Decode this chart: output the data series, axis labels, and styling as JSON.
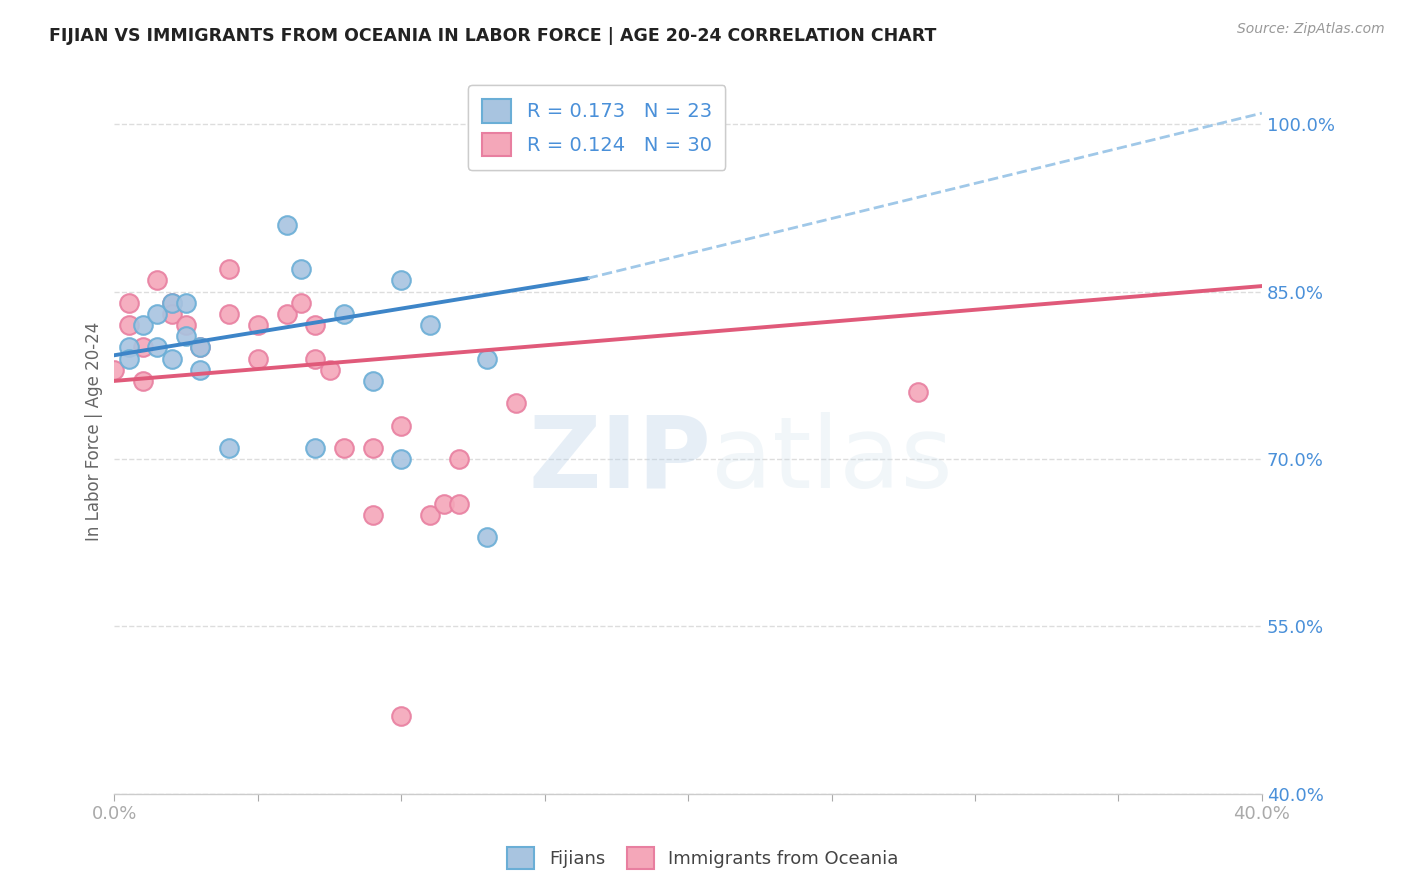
{
  "title": "FIJIAN VS IMMIGRANTS FROM OCEANIA IN LABOR FORCE | AGE 20-24 CORRELATION CHART",
  "source_text": "Source: ZipAtlas.com",
  "ylabel": "In Labor Force | Age 20-24",
  "xlabel": "",
  "xlim": [
    0.0,
    0.4
  ],
  "ylim": [
    0.4,
    1.05
  ],
  "yticks": [
    0.4,
    0.55,
    0.7,
    0.85,
    1.0
  ],
  "ytick_labels": [
    "40.0%",
    "55.0%",
    "70.0%",
    "85.0%",
    "100.0%"
  ],
  "xticks": [
    0.0,
    0.05,
    0.1,
    0.15,
    0.2,
    0.25,
    0.3,
    0.35,
    0.4
  ],
  "xtick_labels": [
    "0.0%",
    "",
    "",
    "",
    "",
    "",
    "",
    "",
    "40.0%"
  ],
  "fijian_color": "#a8c4e0",
  "oceania_color": "#f4a7b9",
  "fijian_edge_color": "#6aaed6",
  "oceania_edge_color": "#e87fa0",
  "trend_fijian_color": "#3d85c8",
  "trend_oceania_color": "#e05a7a",
  "trend_fijian_dash_color": "#a0c8e8",
  "R_fijian": 0.173,
  "N_fijian": 23,
  "R_oceania": 0.124,
  "N_oceania": 30,
  "fijian_x": [
    0.005,
    0.005,
    0.01,
    0.015,
    0.015,
    0.02,
    0.02,
    0.025,
    0.025,
    0.03,
    0.03,
    0.04,
    0.06,
    0.065,
    0.07,
    0.08,
    0.09,
    0.1,
    0.1,
    0.11,
    0.13,
    0.13,
    0.16
  ],
  "fijian_y": [
    0.8,
    0.79,
    0.82,
    0.83,
    0.8,
    0.84,
    0.79,
    0.84,
    0.81,
    0.78,
    0.8,
    0.71,
    0.91,
    0.87,
    0.71,
    0.83,
    0.77,
    0.86,
    0.7,
    0.82,
    0.79,
    0.63,
    0.99
  ],
  "oceania_x": [
    0.0,
    0.005,
    0.005,
    0.01,
    0.01,
    0.015,
    0.02,
    0.02,
    0.025,
    0.03,
    0.04,
    0.04,
    0.05,
    0.05,
    0.06,
    0.065,
    0.07,
    0.07,
    0.075,
    0.08,
    0.09,
    0.09,
    0.1,
    0.11,
    0.115,
    0.12,
    0.12,
    0.14,
    0.28,
    0.1
  ],
  "oceania_y": [
    0.78,
    0.84,
    0.82,
    0.8,
    0.77,
    0.86,
    0.84,
    0.83,
    0.82,
    0.8,
    0.87,
    0.83,
    0.82,
    0.79,
    0.83,
    0.84,
    0.79,
    0.82,
    0.78,
    0.71,
    0.71,
    0.65,
    0.73,
    0.65,
    0.66,
    0.7,
    0.66,
    0.75,
    0.76,
    0.47
  ],
  "legend_fijian_label": "Fijians",
  "legend_oceania_label": "Immigrants from Oceania",
  "watermark_zip": "ZIP",
  "watermark_atlas": "atlas",
  "background_color": "#ffffff",
  "grid_color": "#dddddd",
  "title_color": "#222222",
  "axis_label_color": "#666666",
  "tick_color": "#4a90d9",
  "source_color": "#999999",
  "trend_fijian_start_x": 0.0,
  "trend_fijian_solid_end_x": 0.165,
  "trend_fijian_dash_end_x": 0.4,
  "trend_oceania_start_x": 0.0,
  "trend_oceania_end_x": 0.4
}
